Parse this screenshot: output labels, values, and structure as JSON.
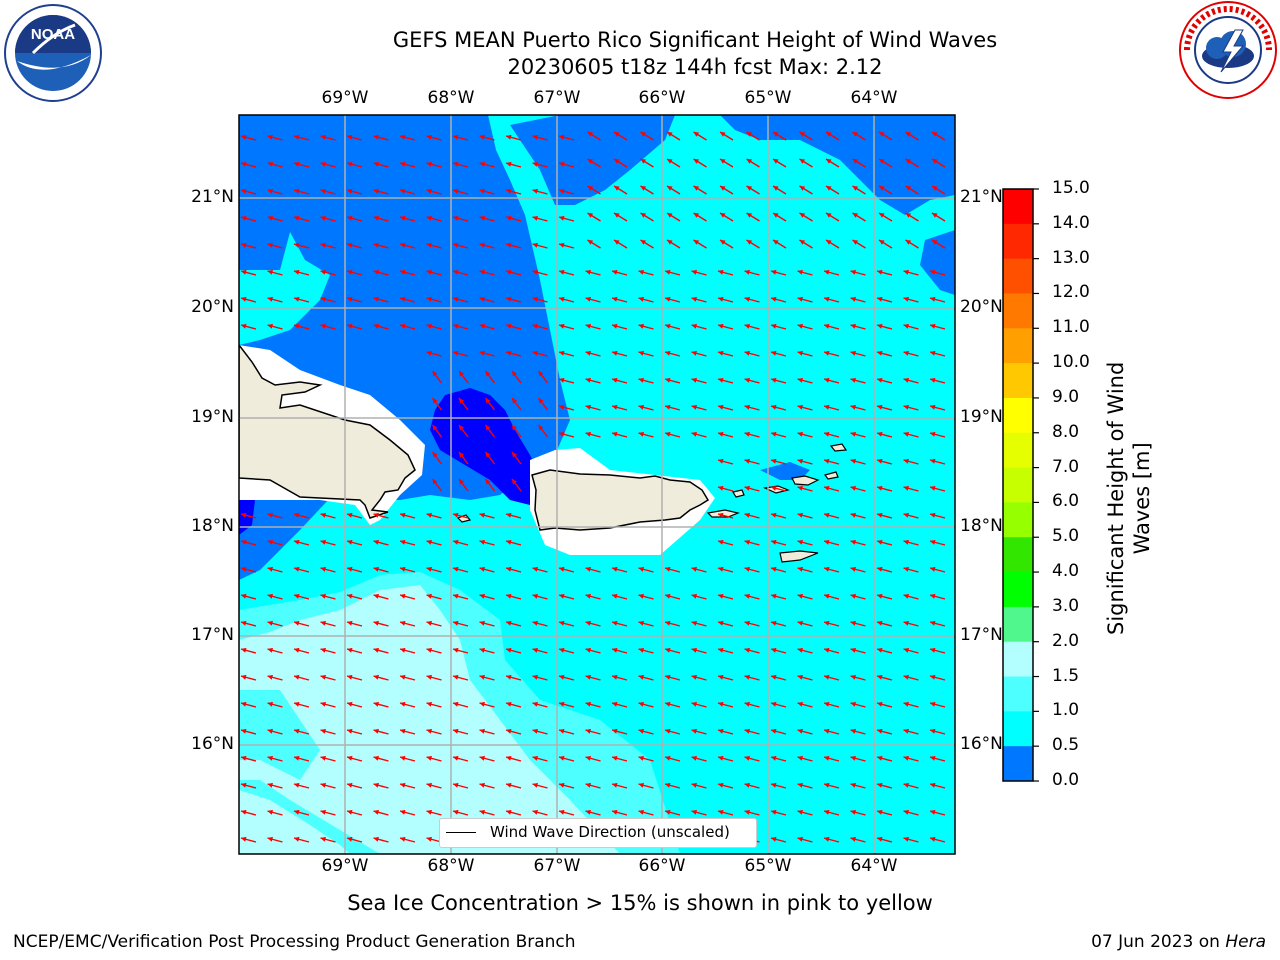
{
  "header": {
    "title_line1": "GEFS MEAN Puerto Rico Significant Height of Wind Waves",
    "title_line2": "20230605 t18z 144h fcst   Max: 2.12"
  },
  "logos": {
    "left_icon": "noaa-logo",
    "left_text": "NOAA",
    "left_ring_text": "NATIONAL OCEANIC AND ATMOSPHERIC ADMINISTRATION · U.S. DEPARTMENT OF COMMERCE",
    "right_icon": "nws-logo",
    "right_ring_text": "NATIONAL WEATHER SERVICE"
  },
  "map": {
    "lon_labels": [
      "69°W",
      "68°W",
      "67°W",
      "66°W",
      "65°W",
      "64°W"
    ],
    "lat_labels": [
      "21°N",
      "20°N",
      "19°N",
      "18°N",
      "17°N",
      "16°N"
    ],
    "legend_label": "Wind Wave Direction (unscaled)",
    "colors": {
      "blue_0_05": "#0000ff",
      "blue_05_1": "#0077ff",
      "cyan_1_15": "#00ffff",
      "cyan_15_2": "#4dffff",
      "cyan_2_3": "#b3ffff",
      "land": "#efecdc",
      "arrow": "#ff0000"
    }
  },
  "colorbar": {
    "ticks": [
      "15.0",
      "14.0",
      "13.0",
      "12.0",
      "11.0",
      "10.0",
      "9.0",
      "8.0",
      "7.0",
      "6.0",
      "5.0",
      "4.0",
      "3.0",
      "2.0",
      "1.5",
      "1.0",
      "0.5",
      "0.0"
    ],
    "colors": [
      "#ff0000",
      "#ff2800",
      "#ff5000",
      "#ff7800",
      "#ffa000",
      "#ffc800",
      "#ffff00",
      "#e6ff00",
      "#c8ff00",
      "#96ff00",
      "#32e600",
      "#00ff00",
      "#50f78c",
      "#b3ffff",
      "#4dffff",
      "#00ffff",
      "#0077ff",
      "#0000ff"
    ],
    "label_line1": "Significant Height of Wind",
    "label_line2": "Waves [m]"
  },
  "bottom_note": "Sea Ice Concentration > 15% is shown in pink to yellow",
  "footer": {
    "left": "NCEP/EMC/Verification Post Processing Product Generation Branch",
    "date": "07 Jun 2023 on ",
    "host": "Hera"
  }
}
